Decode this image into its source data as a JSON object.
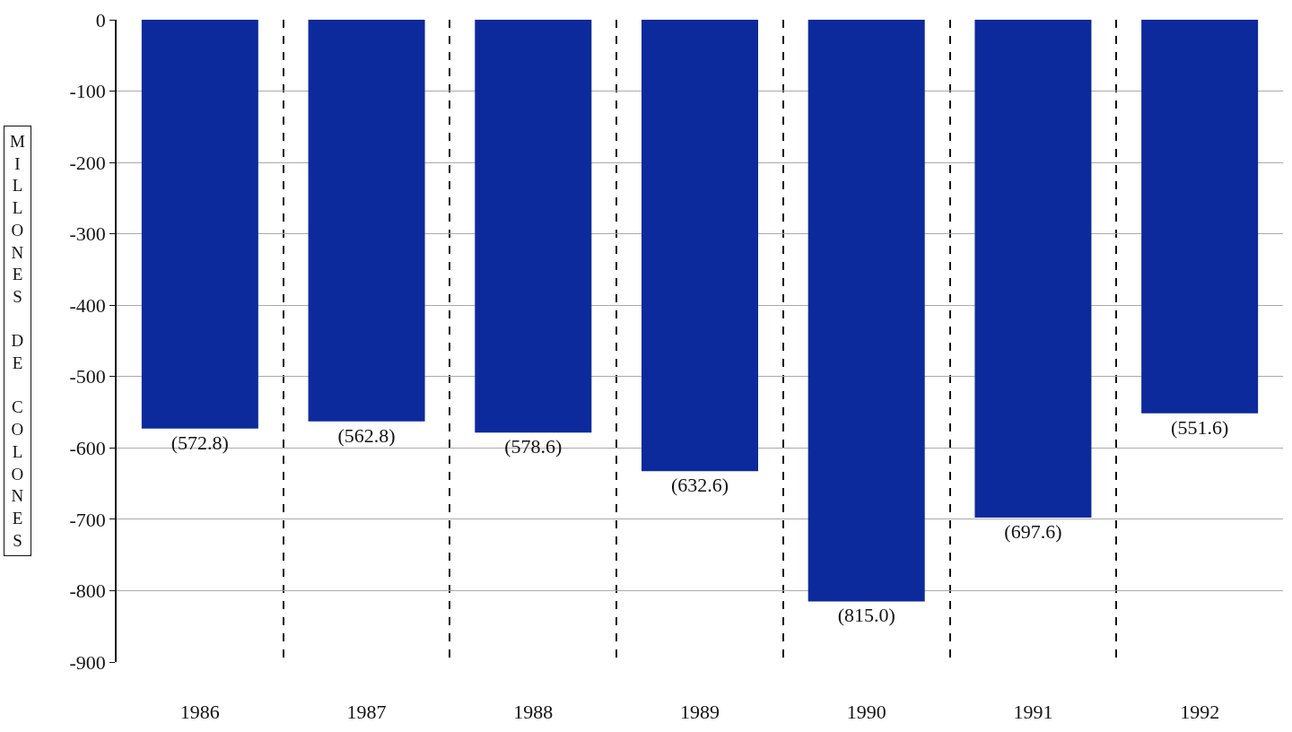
{
  "chart_data": {
    "type": "bar",
    "ylabel": "MILLONES DE COLONES",
    "categories": [
      "1986",
      "1987",
      "1988",
      "1989",
      "1990",
      "1991",
      "1992"
    ],
    "values": [
      -572.8,
      -562.8,
      -578.6,
      -632.6,
      -815.0,
      -697.6,
      -551.6
    ],
    "value_labels": [
      "(572.8)",
      "(562.8)",
      "(578.6)",
      "(632.6)",
      "(815.0)",
      "(697.6)",
      "(551.6)"
    ],
    "color": "#0d2a9c",
    "ylim": [
      -900,
      0
    ],
    "yticks": [
      0,
      -100,
      -200,
      -300,
      -400,
      -500,
      -600,
      -700,
      -800,
      -900
    ],
    "grid": true
  }
}
